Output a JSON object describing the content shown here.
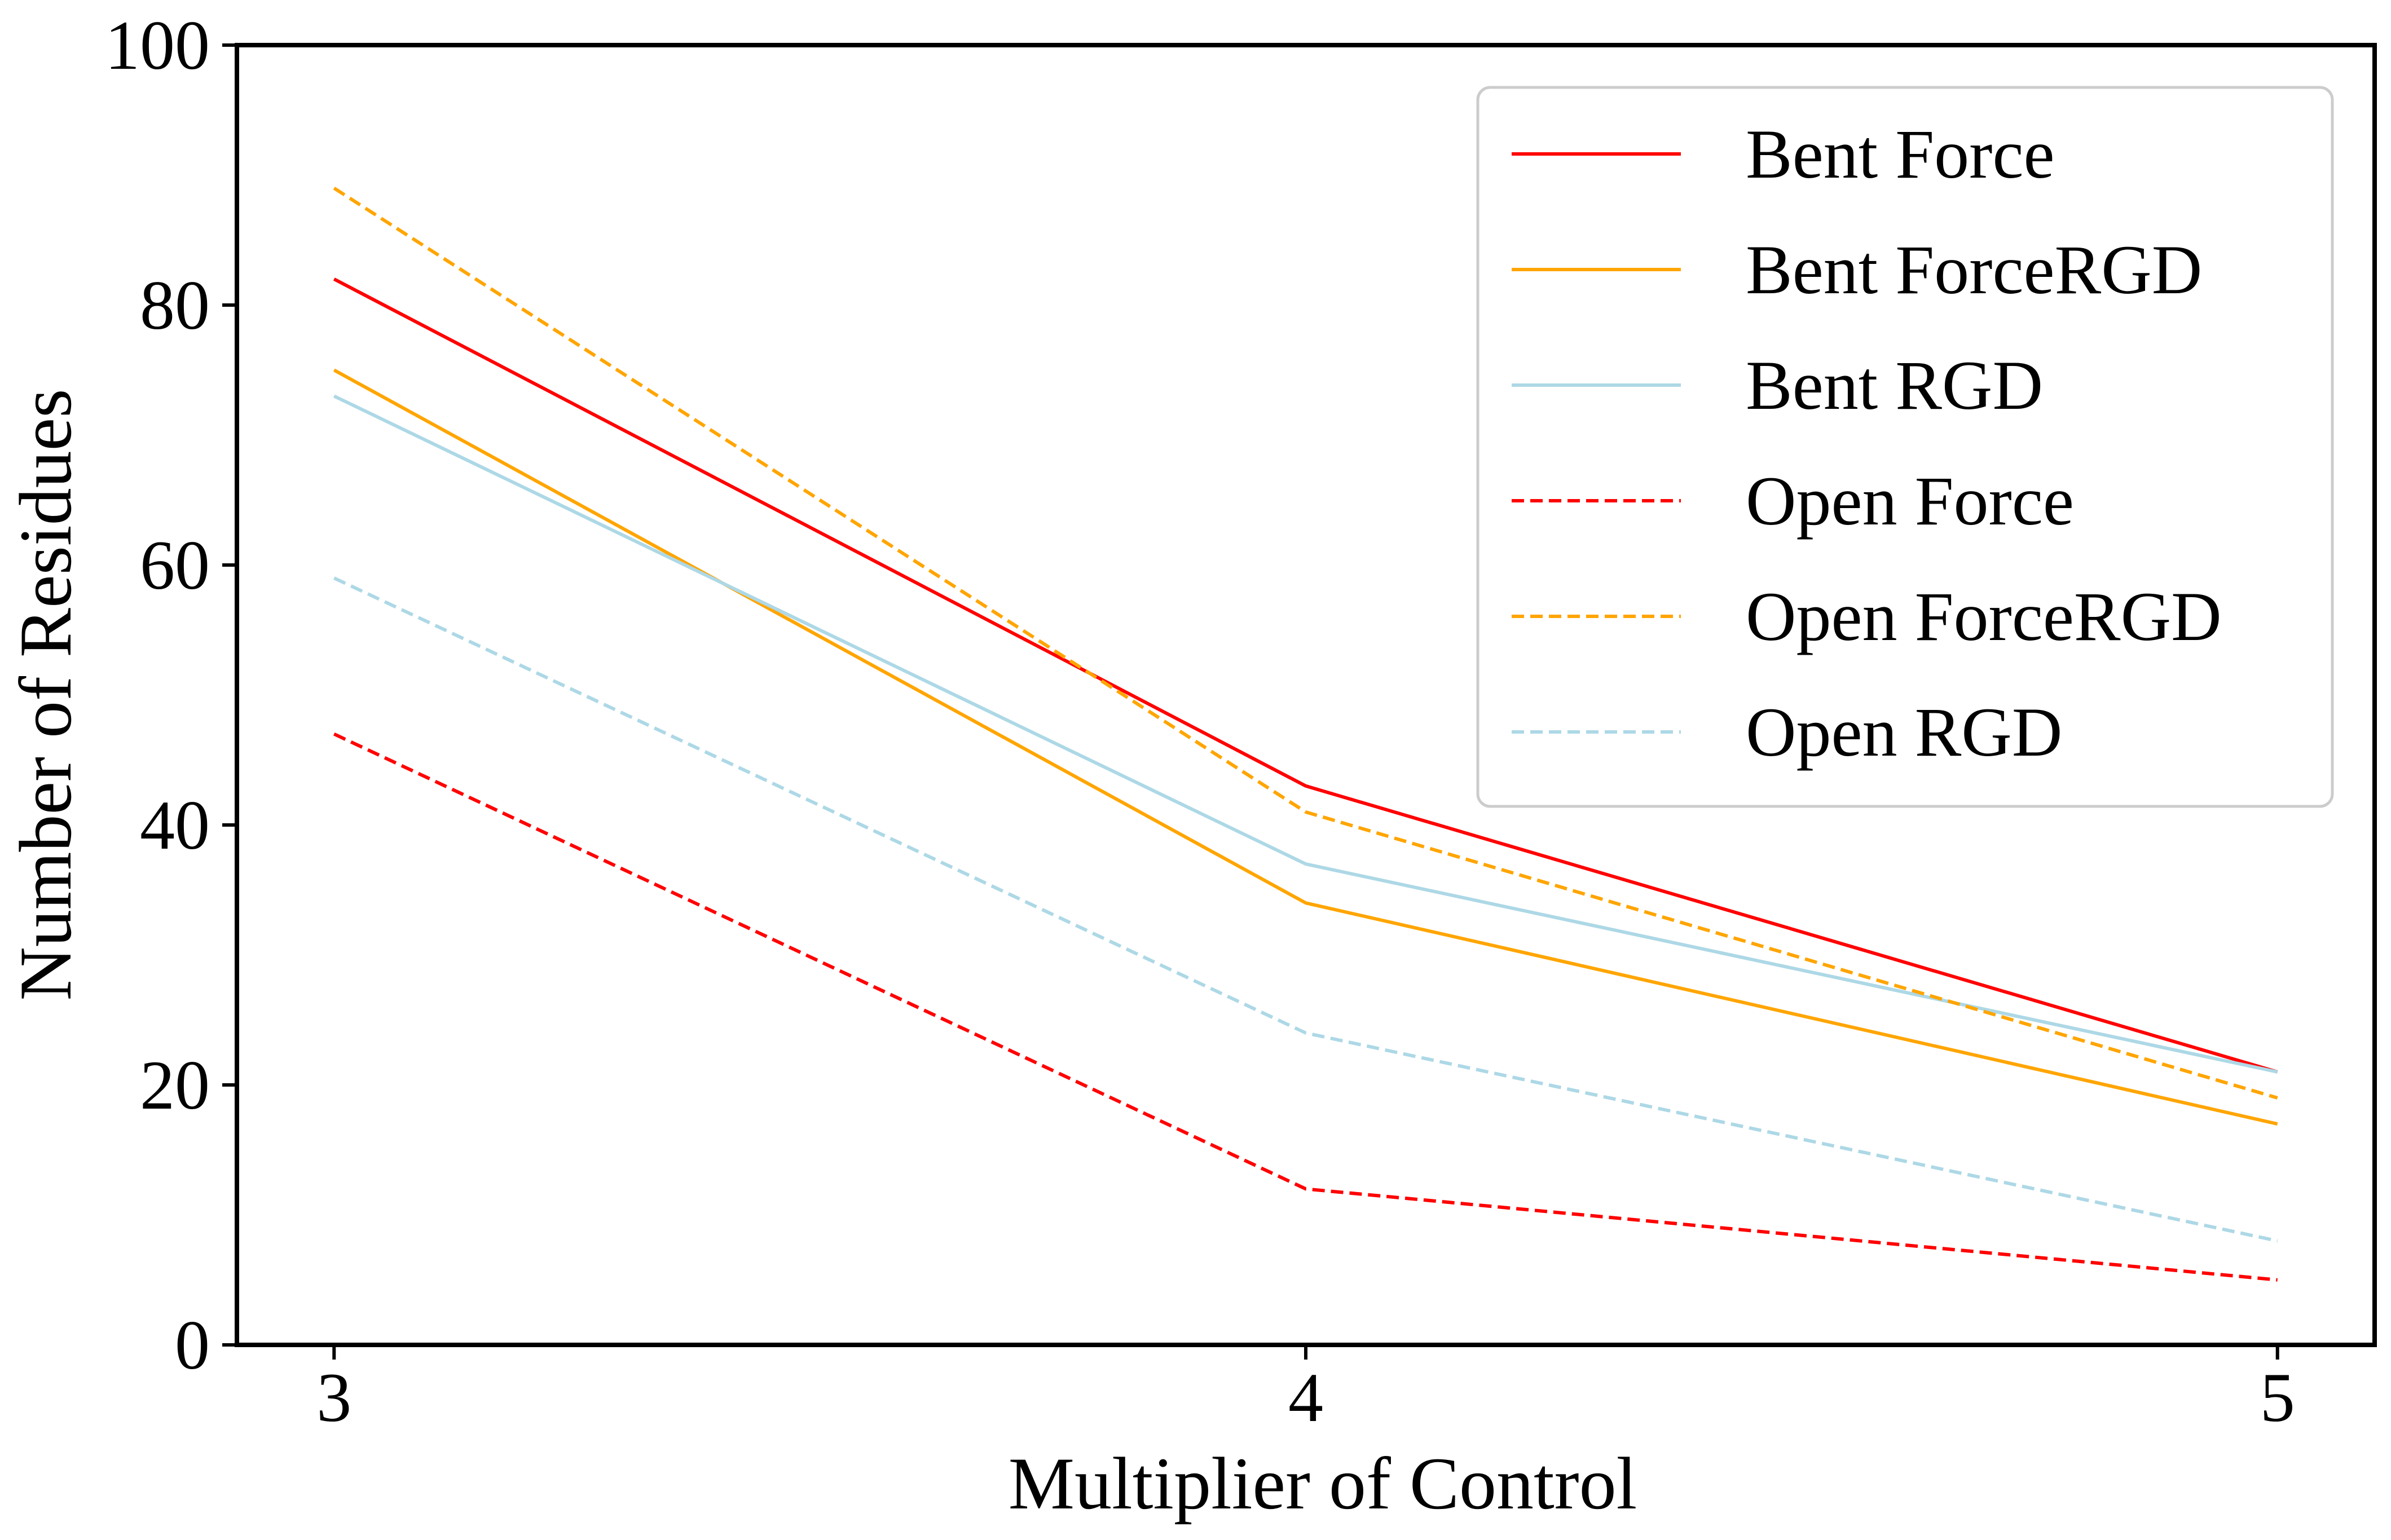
{
  "chart_data": {
    "type": "line",
    "title": "",
    "xlabel": "Multiplier of Control",
    "ylabel": "Number of Residues",
    "x": [
      3,
      4,
      5
    ],
    "x_tick_labels": [
      "3",
      "4",
      "5"
    ],
    "y_ticks": [
      0,
      20,
      40,
      60,
      80,
      100
    ],
    "y_tick_labels": [
      "0",
      "20",
      "40",
      "60",
      "80",
      "100"
    ],
    "xlim": [
      2.9,
      5.1
    ],
    "ylim": [
      0,
      100
    ],
    "grid": false,
    "legend_position": "top-right",
    "series": [
      {
        "name": "Bent Force",
        "values": [
          82,
          43,
          21
        ],
        "color": "#ff0000",
        "style": "solid"
      },
      {
        "name": "Bent ForceRGD",
        "values": [
          75,
          34,
          17
        ],
        "color": "#ffa500",
        "style": "solid"
      },
      {
        "name": "Bent RGD",
        "values": [
          73,
          37,
          21
        ],
        "color": "#add8e6",
        "style": "solid"
      },
      {
        "name": "Open Force",
        "values": [
          47,
          12,
          5
        ],
        "color": "#ff0000",
        "style": "dashed"
      },
      {
        "name": "Open ForceRGD",
        "values": [
          89,
          41,
          19
        ],
        "color": "#ffa500",
        "style": "dashed"
      },
      {
        "name": "Open RGD",
        "values": [
          59,
          24,
          8
        ],
        "color": "#add8e6",
        "style": "dashed"
      }
    ]
  }
}
